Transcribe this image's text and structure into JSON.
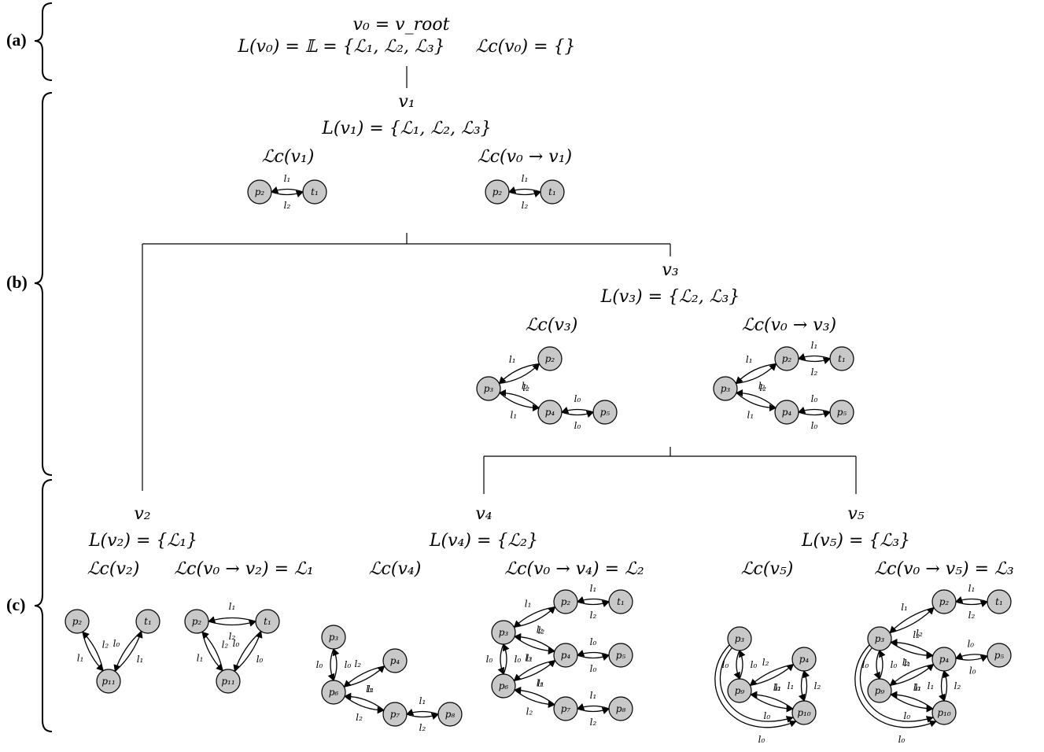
{
  "sections": [
    {
      "id": "a",
      "label": "(a)"
    },
    {
      "id": "b",
      "label": "(b)"
    },
    {
      "id": "c",
      "label": "(c)"
    }
  ],
  "tree": {
    "v0": {
      "name": "v₀ = v_root",
      "L": "L(v₀) = 𝕃 = {ℒ₁, ℒ₂, ℒ₃}",
      "Lc": "ℒc(v₀) = {}"
    },
    "v1": {
      "name": "v₁",
      "L": "L(v₁) = {ℒ₁, ℒ₂, ℒ₃}",
      "Lc": "ℒc(v₁)",
      "Lpath": "ℒc(v₀ → v₁)"
    },
    "v2": {
      "name": "v₂",
      "L": "L(v₂) = {ℒ₁}",
      "Lc": "ℒc(v₂)",
      "Lpath": "ℒc(v₀ → v₂) = ℒ₁"
    },
    "v3": {
      "name": "v₃",
      "L": "L(v₃) = {ℒ₂, ℒ₃}",
      "Lc": "ℒc(v₃)",
      "Lpath": "ℒc(v₀ → v₃)"
    },
    "v4": {
      "name": "v₄",
      "L": "L(v₄) = {ℒ₂}",
      "Lc": "ℒc(v₄)",
      "Lpath": "ℒc(v₀ → v₄) = ℒ₂"
    },
    "v5": {
      "name": "v₅",
      "L": "L(v₅) = {ℒ₃}",
      "Lc": "ℒc(v₅)",
      "Lpath": "ℒc(v₀ → v₅) = ℒ₃"
    }
  },
  "graph_nodes": {
    "p2": "p₂",
    "p3": "p₃",
    "p4": "p₄",
    "p5": "p₅",
    "p6": "p₆",
    "p7": "p₇",
    "p8": "p₈",
    "p9": "p₉",
    "p10": "p₁₀",
    "p11": "p₁₁",
    "t1": "t₁"
  },
  "edge_labels": {
    "l0": "l₀",
    "l1": "l₁",
    "l2": "l₂"
  }
}
